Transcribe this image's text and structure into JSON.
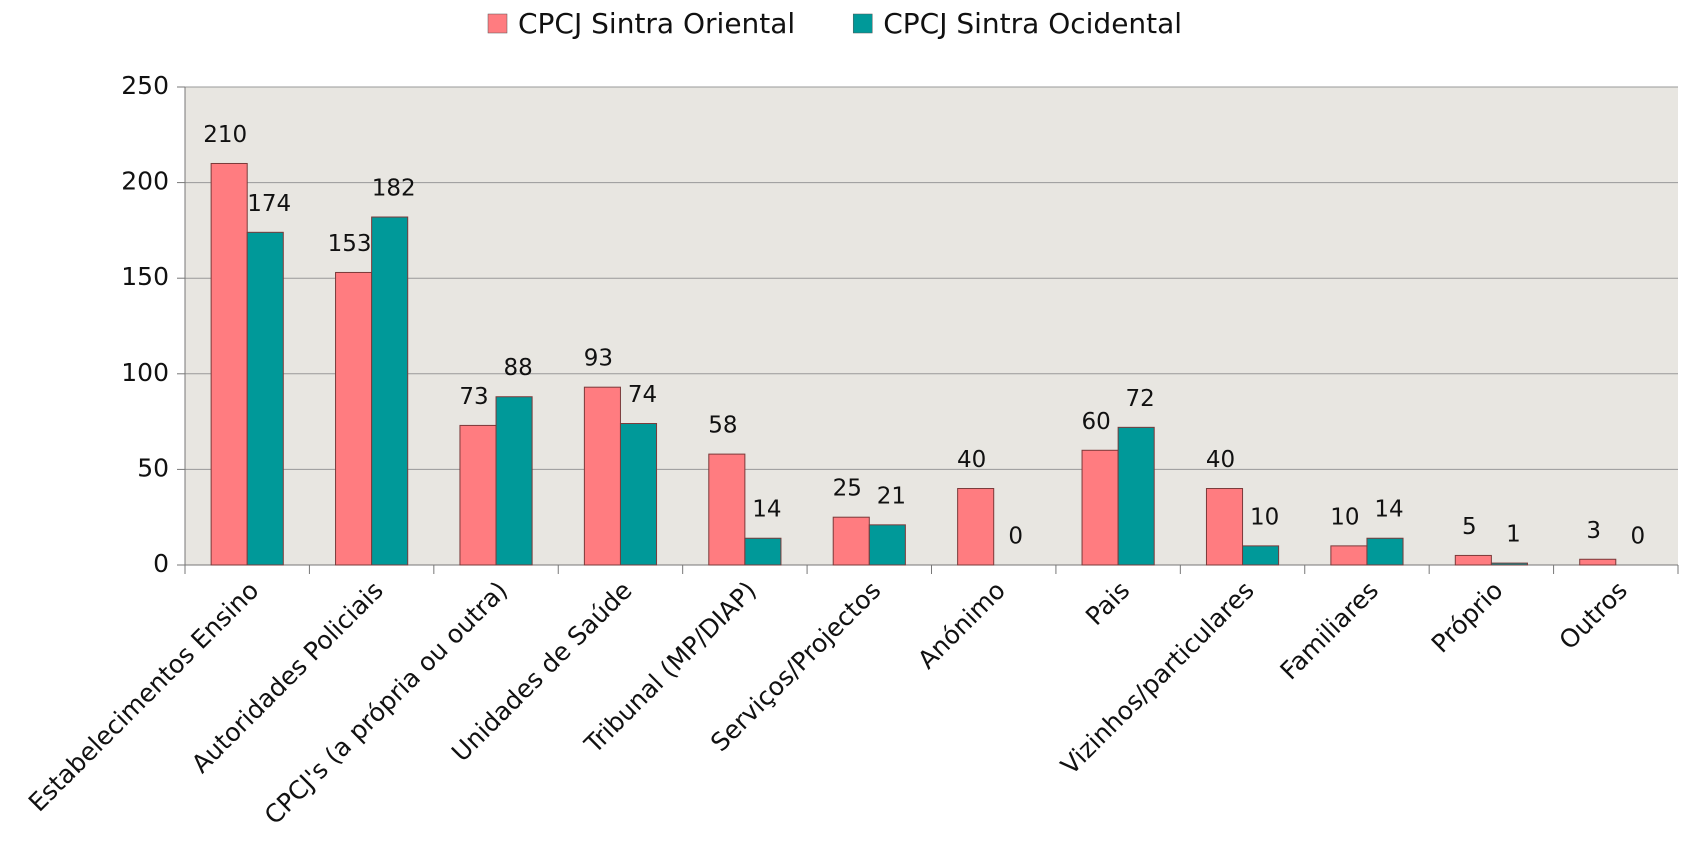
{
  "chart_data": {
    "type": "bar",
    "categories": [
      "Estabelecimentos Ensino",
      "Autoridades Policiais",
      "CPCJ's (a própria ou outra)",
      "Unidades de Saúde",
      "Tribunal (MP/DIAP)",
      "Serviços/Projectos",
      "Anónimo",
      "Pais",
      "Vizinhos/particulares",
      "Familiares",
      "Próprio",
      "Outros"
    ],
    "series": [
      {
        "name": "CPCJ Sintra Oriental",
        "color": "#ff7c80",
        "values": [
          210,
          153,
          73,
          93,
          58,
          25,
          40,
          60,
          40,
          10,
          5,
          3
        ]
      },
      {
        "name": "CPCJ Sintra Ocidental",
        "color": "#009999",
        "values": [
          174,
          182,
          88,
          74,
          14,
          21,
          0,
          72,
          10,
          14,
          1,
          0
        ]
      }
    ],
    "ylim": [
      0,
      250
    ],
    "yticks": [
      0,
      50,
      100,
      150,
      200,
      250
    ],
    "grid": true,
    "legend": "top"
  }
}
